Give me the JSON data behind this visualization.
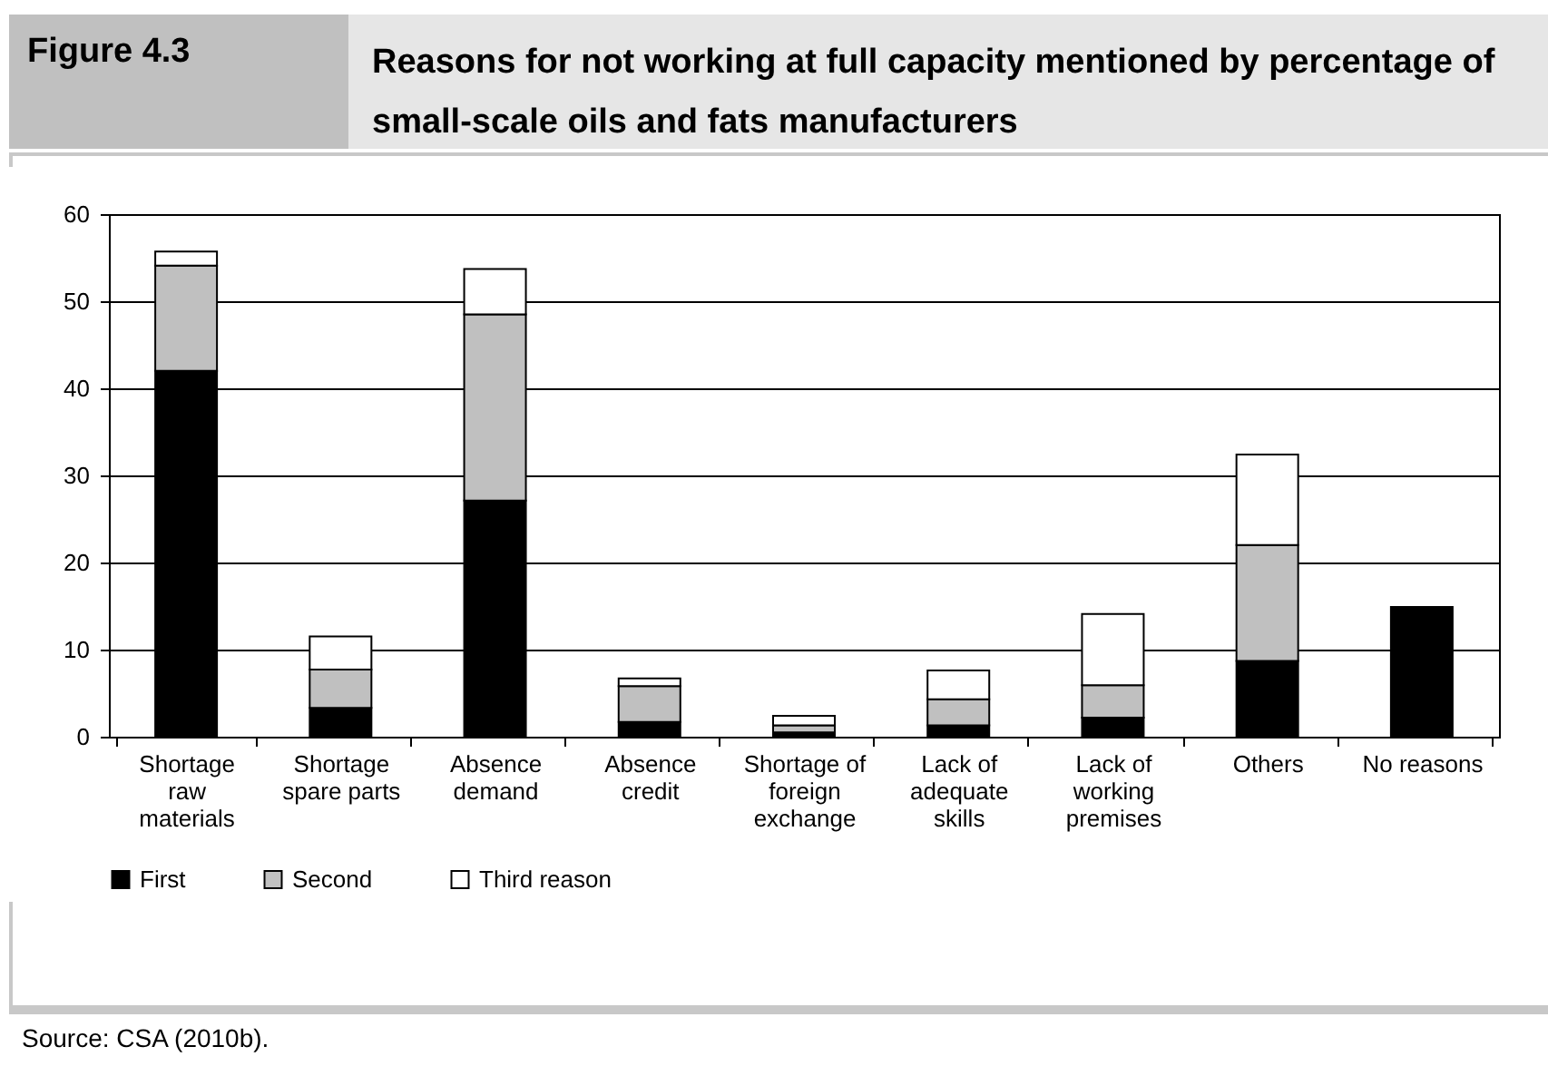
{
  "chart_data": {
    "type": "bar",
    "title": "Reasons for not working at full capacity mentioned by percentage of small-scale oils and fats manufacturers",
    "annotations": [
      "Figure 4.3",
      "Source: CSA (2010b)."
    ],
    "categories": [
      "Shortage raw materials",
      "Shortage spare parts",
      "Absence demand",
      "Absence credit",
      "Shortage of foreign exchange",
      "Lack of adequate skills",
      "Lack of working premises",
      "Others",
      "No reasons"
    ],
    "stacked": true,
    "series": [
      {
        "name": "First",
        "color": "#000000",
        "values": [
          42.0,
          3.3,
          27.1,
          1.7,
          0.5,
          1.3,
          2.2,
          8.7,
          14.9
        ]
      },
      {
        "name": "Second",
        "color": "#c0c0c0",
        "values": [
          12.1,
          4.4,
          21.4,
          4.1,
          0.8,
          3.0,
          3.7,
          13.3,
          null
        ]
      },
      {
        "name": "Third reason",
        "color": "#ffffff",
        "values": [
          1.6,
          3.8,
          5.2,
          0.9,
          1.1,
          3.3,
          8.2,
          10.4,
          null
        ]
      }
    ],
    "ylim": [
      0,
      60
    ],
    "yticks": [
      0,
      10,
      20,
      30,
      40,
      50,
      60
    ],
    "grid": "y",
    "legend": "bottom"
  }
}
